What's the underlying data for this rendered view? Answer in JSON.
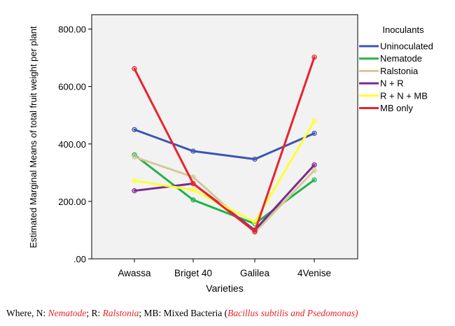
{
  "chart_data": {
    "type": "line",
    "xlabel": "Varieties",
    "ylabel": "Estimated Marginal Means of total fruit weight per plant",
    "categories": [
      "Awassa",
      "Briget 40",
      "Galilea",
      "4Venise"
    ],
    "ylim": [
      0,
      850
    ],
    "yticks": [
      0,
      200,
      400,
      600,
      800
    ],
    "ytick_labels": [
      ".00",
      "200.00",
      "400.00",
      "600.00",
      "800.00"
    ],
    "grid": false,
    "legend_title": "Inoculants",
    "legend_position": "right",
    "series": [
      {
        "name": "Uninoculated",
        "color": "#3a56b0",
        "values": [
          450,
          375,
          347,
          437
        ]
      },
      {
        "name": "Nematode",
        "color": "#22b24c",
        "values": [
          362,
          205,
          122,
          275
        ]
      },
      {
        "name": "Ralstonia",
        "color": "#d6c79a",
        "values": [
          355,
          285,
          92,
          308
        ]
      },
      {
        "name": "N + R",
        "color": "#7d2a8a",
        "values": [
          237,
          262,
          100,
          327
        ]
      },
      {
        "name": "R + N + MB",
        "color": "#ffff33",
        "values": [
          272,
          240,
          128,
          480
        ]
      },
      {
        "name": "MB only",
        "color": "#e8242a",
        "values": [
          662,
          262,
          95,
          702
        ]
      }
    ]
  },
  "caption": {
    "prefix": "Where, N: ",
    "n_term": "Nematode",
    "sep1": "; R: ",
    "r_term": "Ralstonia",
    "sep2": "; MB: Mixed Bacteria (",
    "mb_term": "Bacillus subtilis and Psedomonas)"
  }
}
